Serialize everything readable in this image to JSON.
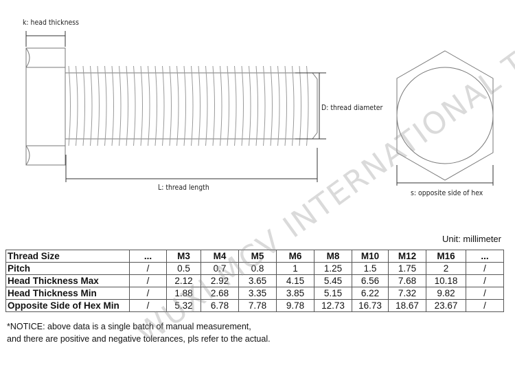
{
  "labels": {
    "k": "k: head thickness",
    "D": "D: thread diameter",
    "L": "L: thread length",
    "s": "s: opposite side of hex"
  },
  "unit": "Unit: millimeter",
  "table": {
    "header": [
      "Thread Size",
      "...",
      "M3",
      "M4",
      "M5",
      "M6",
      "M8",
      "M10",
      "M12",
      "M16",
      "..."
    ],
    "rows": [
      [
        "Pitch",
        "/",
        "0.5",
        "0.7",
        "0.8",
        "1",
        "1.25",
        "1.5",
        "1.75",
        "2",
        "/"
      ],
      [
        "Head Thickness Max",
        "/",
        "2.12",
        "2.92",
        "3.65",
        "4.15",
        "5.45",
        "6.56",
        "7.68",
        "10.18",
        "/"
      ],
      [
        "Head Thickness Min",
        "/",
        "1.88",
        "2.68",
        "3.35",
        "3.85",
        "5.15",
        "6.22",
        "7.32",
        "9.82",
        "/"
      ],
      [
        "Opposite Side of Hex Min",
        "/",
        "5.32",
        "6.78",
        "7.78",
        "9.78",
        "12.73",
        "16.73",
        "18.67",
        "23.67",
        "/"
      ]
    ]
  },
  "notice": [
    "*NOTICE: above data is a single batch of manual measurement,",
    "and there are positive and negative tolerances, pls refer to the actual."
  ],
  "watermark": "WUXI MCV INTERNATIONAL TRADING CO.,LTD"
}
